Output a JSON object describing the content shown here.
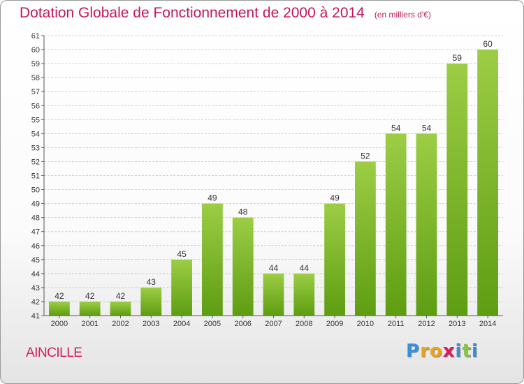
{
  "header": {
    "title": "Dotation Globale de Fonctionnement de 2000 à 2014",
    "unit": "(en milliers d'€)"
  },
  "footer": {
    "commune": "AINCILLE",
    "logo_letters": [
      "P",
      "r",
      "o",
      "x",
      "i",
      "t",
      "i"
    ],
    "logo_colors": [
      "#3b8ed8",
      "#e9a21d",
      "#e9a21d",
      "#d81b60",
      "#3b8ed8",
      "#8bc34a",
      "#3b8ed8"
    ]
  },
  "chart_data": {
    "type": "bar",
    "categories": [
      "2000",
      "2001",
      "2002",
      "2003",
      "2004",
      "2005",
      "2006",
      "2007",
      "2008",
      "2009",
      "2010",
      "2011",
      "2012",
      "2013",
      "2014"
    ],
    "values": [
      42,
      42,
      42,
      43,
      45,
      49,
      48,
      44,
      44,
      49,
      52,
      54,
      54,
      59,
      60
    ],
    "ylim": [
      41,
      61
    ],
    "yticks": [
      41,
      42,
      43,
      44,
      45,
      46,
      47,
      48,
      49,
      50,
      51,
      52,
      53,
      54,
      55,
      56,
      57,
      58,
      59,
      60,
      61
    ],
    "grid": true,
    "bar_color_top": "#9ccd45",
    "bar_color_bottom": "#5e9d12"
  }
}
